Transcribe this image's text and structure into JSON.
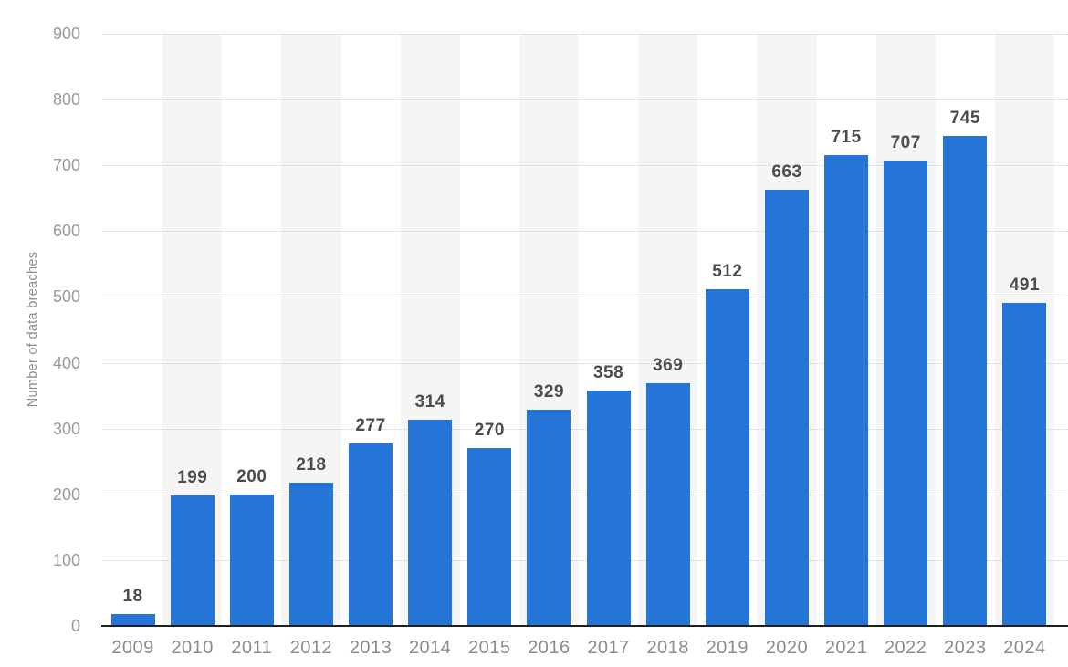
{
  "chart_data": {
    "type": "bar",
    "categories": [
      "2009",
      "2010",
      "2011",
      "2012",
      "2013",
      "2014",
      "2015",
      "2016",
      "2017",
      "2018",
      "2019",
      "2020",
      "2021",
      "2022",
      "2023",
      "2024"
    ],
    "values": [
      18,
      199,
      200,
      218,
      277,
      314,
      270,
      329,
      358,
      369,
      512,
      663,
      715,
      707,
      745,
      491
    ],
    "xlabel": "",
    "ylabel": "Number of data breaches",
    "ylim": [
      0,
      900
    ],
    "ytick_step": 100,
    "yticks": [
      "0",
      "100",
      "200",
      "300",
      "400",
      "500",
      "600",
      "700",
      "800",
      "900"
    ],
    "grid": "horizontal-dotted",
    "legend": "none",
    "value_labels_shown": true,
    "bar_color": "#2575d9",
    "stripe_color": "#f5f5f5",
    "gridline_color": "#c9c9c9",
    "baseline_color": "#1f1f1f",
    "value_label_color": "#4c4c4c",
    "x_tick_color": "#8c8c8c",
    "y_tick_color": "#9a9a9a",
    "axis_title_color": "#8e8e8e"
  }
}
